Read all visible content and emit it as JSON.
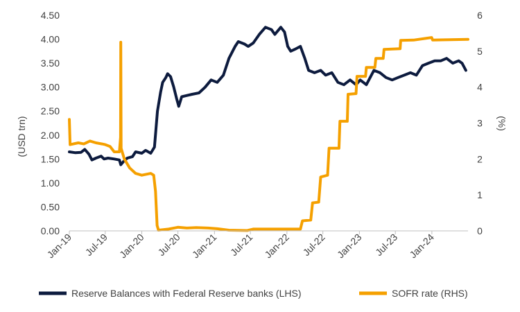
{
  "chart_data": {
    "type": "line",
    "title": "",
    "y_left_label": "(USD trn)",
    "y_right_label": "(%)",
    "y_left_ticks": [
      "0.00",
      "0.50",
      "1.00",
      "1.50",
      "2.00",
      "2.50",
      "3.00",
      "3.50",
      "4.00",
      "4.50"
    ],
    "y_right_ticks": [
      "0",
      "1",
      "2",
      "3",
      "4",
      "5",
      "6"
    ],
    "y_left_range": [
      0,
      4.5
    ],
    "y_right_range": [
      0,
      6
    ],
    "x_range": [
      "2019-01-01",
      "2024-07-01"
    ],
    "x_ticks": [
      {
        "label": "Jan-19",
        "date": "2019-01-01"
      },
      {
        "label": "Jul-19",
        "date": "2019-07-01"
      },
      {
        "label": "Jan-20",
        "date": "2020-01-01"
      },
      {
        "label": "Jul-20",
        "date": "2020-07-01"
      },
      {
        "label": "Jan-21",
        "date": "2021-01-01"
      },
      {
        "label": "Jul-21",
        "date": "2021-07-01"
      },
      {
        "label": "Jan-22",
        "date": "2022-01-01"
      },
      {
        "label": "Jul-22",
        "date": "2022-07-01"
      },
      {
        "label": "Jan-23",
        "date": "2023-01-01"
      },
      {
        "label": "Jul-23",
        "date": "2023-07-01"
      },
      {
        "label": "Jan-24",
        "date": "2024-01-01"
      }
    ],
    "gridlines": false,
    "legend_position": "bottom",
    "series": [
      {
        "name": "Reserve Balances with Federal Reserve banks (LHS)",
        "axis": "left",
        "color": "#0d1b3e",
        "points": [
          [
            "2019-01-01",
            1.65
          ],
          [
            "2019-02-01",
            1.63
          ],
          [
            "2019-03-01",
            1.64
          ],
          [
            "2019-03-20",
            1.7
          ],
          [
            "2019-04-10",
            1.6
          ],
          [
            "2019-04-25",
            1.48
          ],
          [
            "2019-05-15",
            1.52
          ],
          [
            "2019-06-10",
            1.56
          ],
          [
            "2019-06-25",
            1.5
          ],
          [
            "2019-07-15",
            1.52
          ],
          [
            "2019-08-15",
            1.5
          ],
          [
            "2019-09-10",
            1.48
          ],
          [
            "2019-09-17",
            1.38
          ],
          [
            "2019-10-01",
            1.45
          ],
          [
            "2019-10-20",
            1.52
          ],
          [
            "2019-11-15",
            1.55
          ],
          [
            "2019-12-01",
            1.65
          ],
          [
            "2020-01-01",
            1.62
          ],
          [
            "2020-01-20",
            1.68
          ],
          [
            "2020-02-15",
            1.62
          ],
          [
            "2020-03-05",
            1.75
          ],
          [
            "2020-03-20",
            2.5
          ],
          [
            "2020-04-05",
            2.9
          ],
          [
            "2020-04-15",
            3.1
          ],
          [
            "2020-05-01",
            3.2
          ],
          [
            "2020-05-10",
            3.28
          ],
          [
            "2020-05-25",
            3.22
          ],
          [
            "2020-06-10",
            3.0
          ],
          [
            "2020-06-25",
            2.75
          ],
          [
            "2020-07-05",
            2.6
          ],
          [
            "2020-07-20",
            2.8
          ],
          [
            "2020-08-10",
            2.82
          ],
          [
            "2020-09-10",
            2.85
          ],
          [
            "2020-10-15",
            2.88
          ],
          [
            "2020-11-15",
            3.0
          ],
          [
            "2020-12-15",
            3.15
          ],
          [
            "2021-01-15",
            3.1
          ],
          [
            "2021-02-15",
            3.25
          ],
          [
            "2021-03-15",
            3.6
          ],
          [
            "2021-04-15",
            3.85
          ],
          [
            "2021-05-01",
            3.95
          ],
          [
            "2021-06-01",
            3.9
          ],
          [
            "2021-06-20",
            3.85
          ],
          [
            "2021-07-15",
            3.92
          ],
          [
            "2021-08-15",
            4.1
          ],
          [
            "2021-09-15",
            4.25
          ],
          [
            "2021-10-15",
            4.2
          ],
          [
            "2021-11-01",
            4.1
          ],
          [
            "2021-12-01",
            4.25
          ],
          [
            "2021-12-20",
            4.15
          ],
          [
            "2022-01-05",
            3.85
          ],
          [
            "2022-01-20",
            3.75
          ],
          [
            "2022-02-15",
            3.8
          ],
          [
            "2022-03-10",
            3.85
          ],
          [
            "2022-04-01",
            3.6
          ],
          [
            "2022-04-20",
            3.35
          ],
          [
            "2022-05-20",
            3.3
          ],
          [
            "2022-06-20",
            3.35
          ],
          [
            "2022-07-15",
            3.25
          ],
          [
            "2022-08-15",
            3.3
          ],
          [
            "2022-09-15",
            3.1
          ],
          [
            "2022-10-15",
            3.05
          ],
          [
            "2022-11-15",
            3.15
          ],
          [
            "2022-12-15",
            3.05
          ],
          [
            "2023-01-05",
            3.15
          ],
          [
            "2023-02-05",
            3.05
          ],
          [
            "2023-03-15",
            3.35
          ],
          [
            "2023-04-15",
            3.3
          ],
          [
            "2023-05-15",
            3.2
          ],
          [
            "2023-06-15",
            3.15
          ],
          [
            "2023-07-15",
            3.2
          ],
          [
            "2023-08-15",
            3.25
          ],
          [
            "2023-09-15",
            3.3
          ],
          [
            "2023-10-15",
            3.25
          ],
          [
            "2023-11-15",
            3.45
          ],
          [
            "2023-12-15",
            3.5
          ],
          [
            "2024-01-15",
            3.55
          ],
          [
            "2024-02-15",
            3.55
          ],
          [
            "2024-03-15",
            3.6
          ],
          [
            "2024-04-15",
            3.5
          ],
          [
            "2024-05-15",
            3.55
          ],
          [
            "2024-06-01",
            3.5
          ],
          [
            "2024-06-20",
            3.35
          ]
        ]
      },
      {
        "name": "SOFR rate (RHS)",
        "axis": "right",
        "color": "#f5a000",
        "points": [
          [
            "2019-01-01",
            3.1
          ],
          [
            "2019-01-05",
            2.4
          ],
          [
            "2019-02-15",
            2.45
          ],
          [
            "2019-03-15",
            2.42
          ],
          [
            "2019-04-15",
            2.5
          ],
          [
            "2019-05-15",
            2.45
          ],
          [
            "2019-06-15",
            2.42
          ],
          [
            "2019-07-01",
            2.4
          ],
          [
            "2019-07-25",
            2.35
          ],
          [
            "2019-08-15",
            2.2
          ],
          [
            "2019-09-10",
            2.2
          ],
          [
            "2019-09-16",
            2.6
          ],
          [
            "2019-09-17",
            5.25
          ],
          [
            "2019-09-19",
            2.3
          ],
          [
            "2019-10-05",
            2.0
          ],
          [
            "2019-11-01",
            1.75
          ],
          [
            "2019-12-01",
            1.6
          ],
          [
            "2020-01-01",
            1.55
          ],
          [
            "2020-02-15",
            1.6
          ],
          [
            "2020-03-01",
            1.55
          ],
          [
            "2020-03-10",
            1.1
          ],
          [
            "2020-03-18",
            0.15
          ],
          [
            "2020-03-25",
            0.02
          ],
          [
            "2020-05-15",
            0.05
          ],
          [
            "2020-07-01",
            0.1
          ],
          [
            "2020-08-15",
            0.08
          ],
          [
            "2020-10-01",
            0.09
          ],
          [
            "2020-12-01",
            0.08
          ],
          [
            "2021-01-15",
            0.06
          ],
          [
            "2021-03-15",
            0.02
          ],
          [
            "2021-06-15",
            0.01
          ],
          [
            "2021-07-15",
            0.05
          ],
          [
            "2021-10-15",
            0.05
          ],
          [
            "2022-01-15",
            0.05
          ],
          [
            "2022-03-10",
            0.05
          ],
          [
            "2022-03-20",
            0.28
          ],
          [
            "2022-05-01",
            0.3
          ],
          [
            "2022-05-10",
            0.78
          ],
          [
            "2022-06-10",
            0.8
          ],
          [
            "2022-06-20",
            1.5
          ],
          [
            "2022-07-25",
            1.55
          ],
          [
            "2022-08-01",
            2.3
          ],
          [
            "2022-09-20",
            2.3
          ],
          [
            "2022-09-25",
            3.05
          ],
          [
            "2022-11-01",
            3.05
          ],
          [
            "2022-11-05",
            3.8
          ],
          [
            "2022-12-15",
            3.82
          ],
          [
            "2022-12-20",
            4.3
          ],
          [
            "2023-02-01",
            4.3
          ],
          [
            "2023-02-05",
            4.55
          ],
          [
            "2023-03-20",
            4.55
          ],
          [
            "2023-03-25",
            4.8
          ],
          [
            "2023-05-01",
            4.8
          ],
          [
            "2023-05-05",
            5.05
          ],
          [
            "2023-07-25",
            5.07
          ],
          [
            "2023-07-28",
            5.3
          ],
          [
            "2023-10-01",
            5.31
          ],
          [
            "2023-12-31",
            5.38
          ],
          [
            "2024-01-05",
            5.31
          ],
          [
            "2024-04-01",
            5.32
          ],
          [
            "2024-07-01",
            5.33
          ]
        ]
      }
    ]
  }
}
